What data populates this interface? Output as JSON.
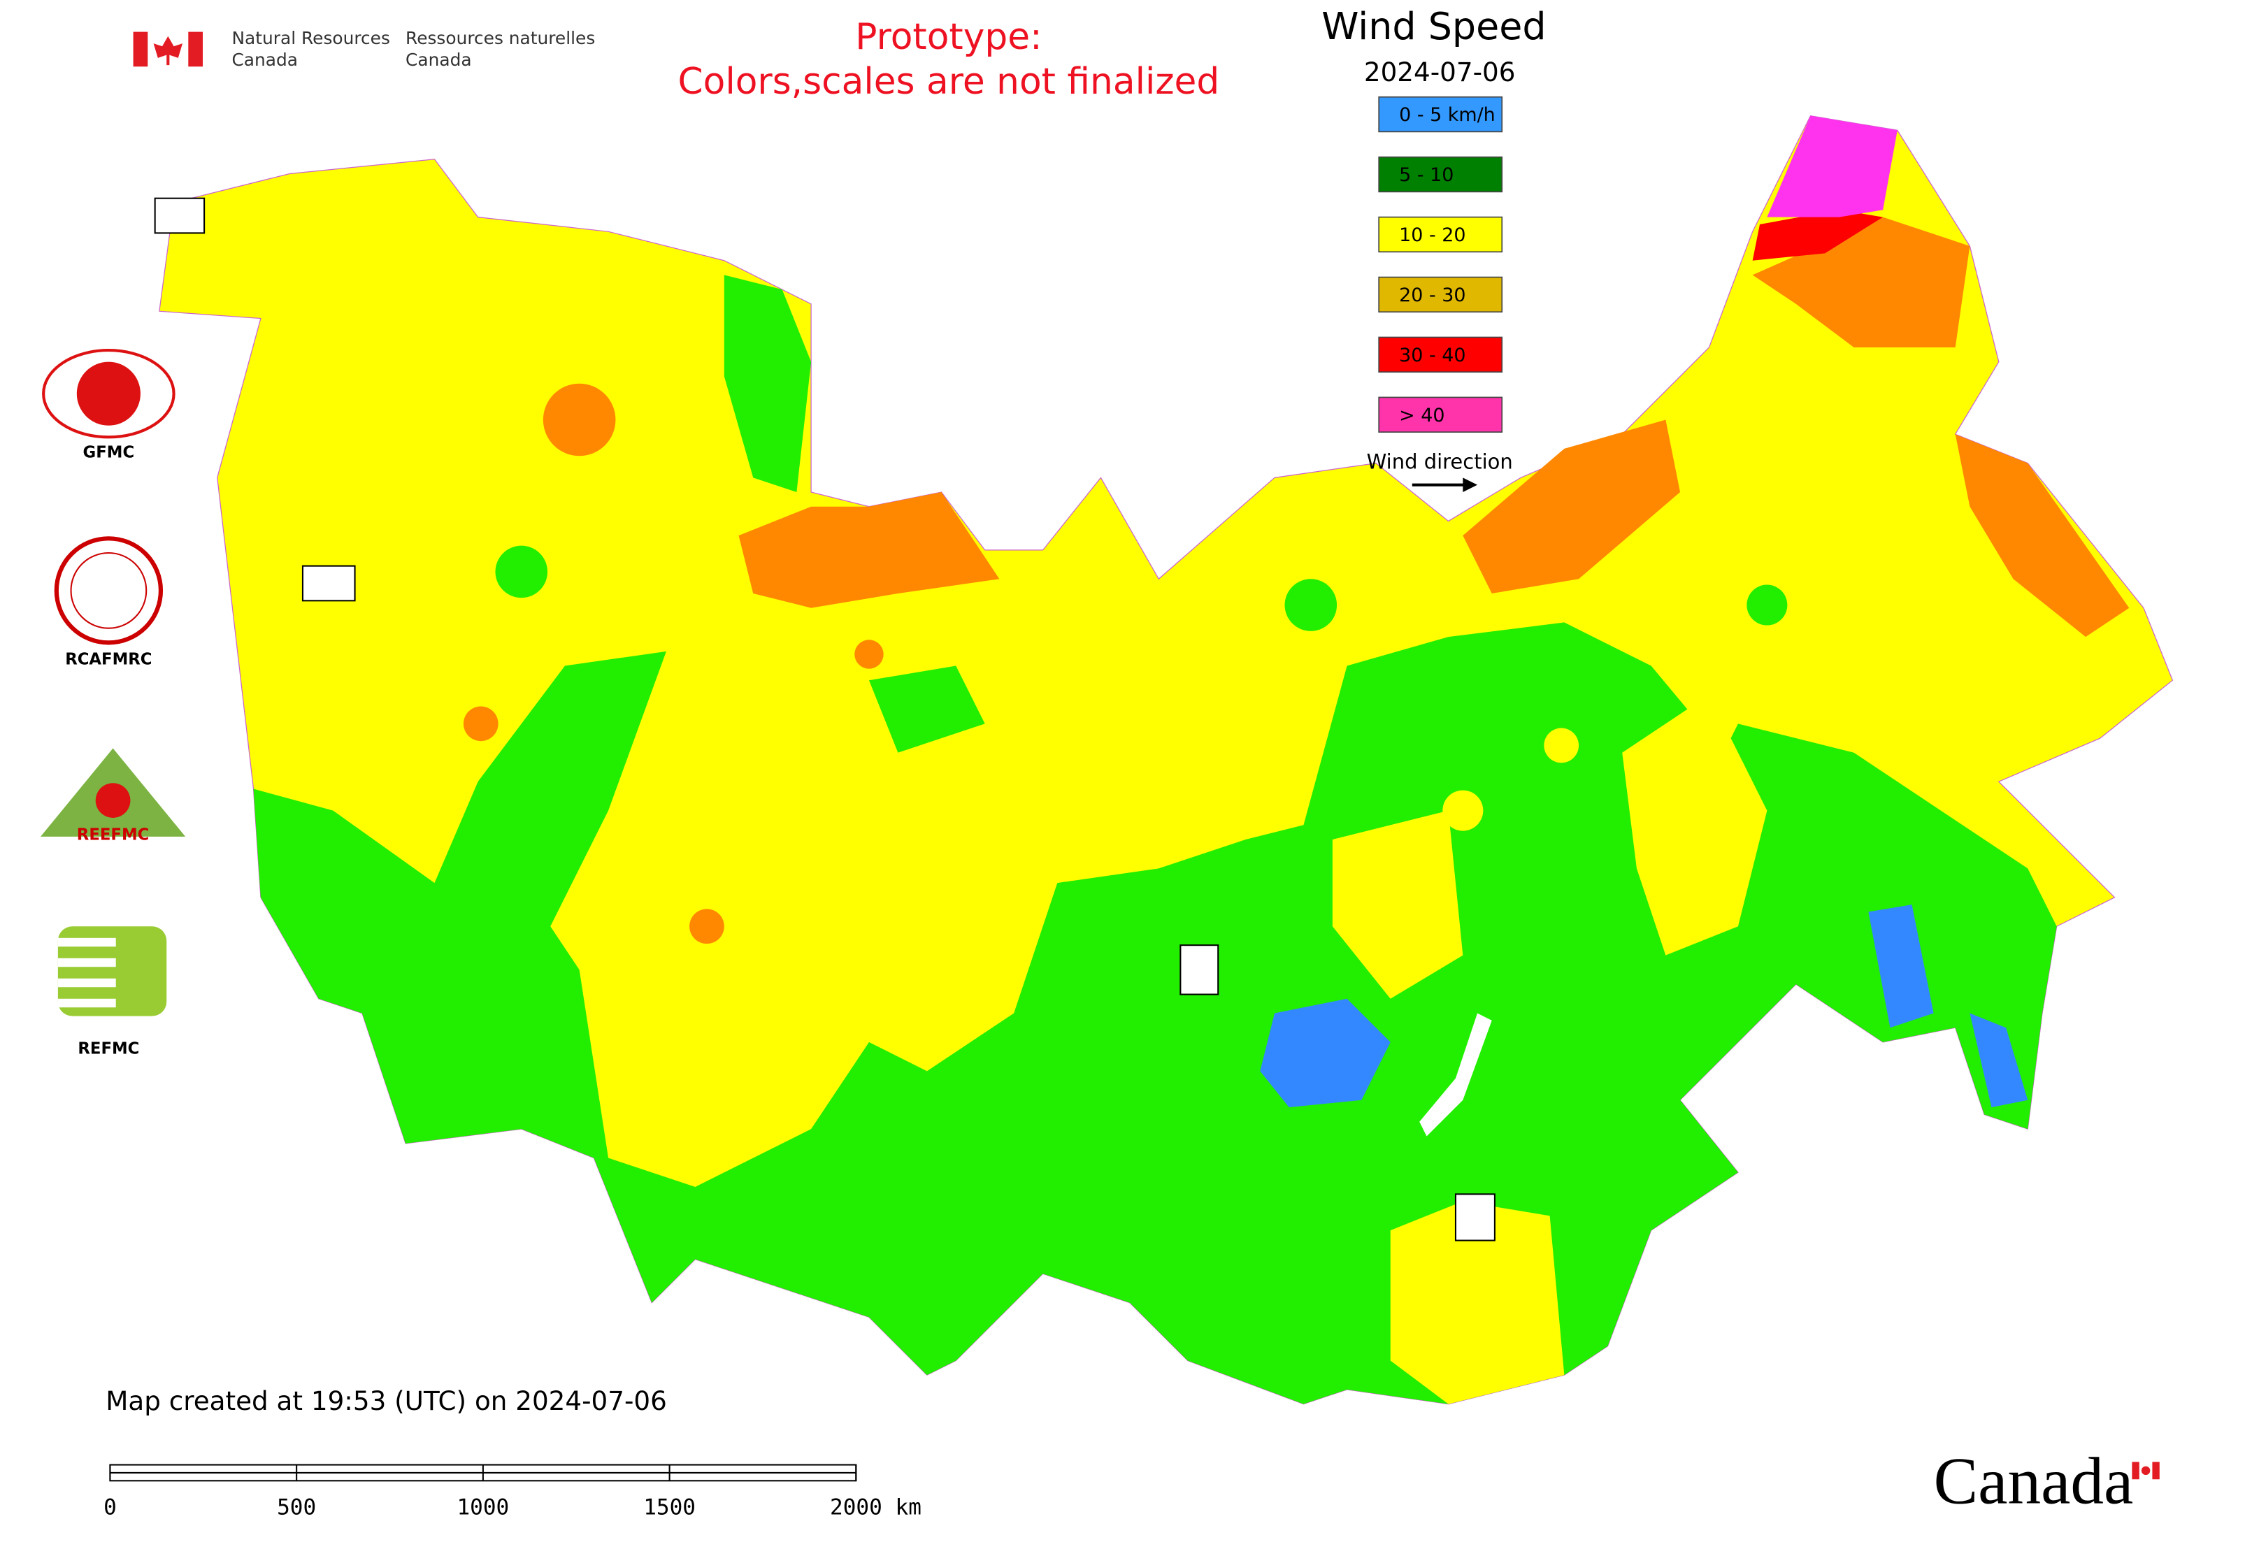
{
  "header": {
    "org_en": [
      "Natural Resources",
      "Canada"
    ],
    "org_fr": [
      "Ressources naturelles",
      "Canada"
    ]
  },
  "notice": [
    "Prototype:",
    "Colors,scales are not finalized"
  ],
  "title": "Wind Speed",
  "date": "2024-07-06",
  "legend": [
    {
      "label": "0 - 5 km/h",
      "color": "#3399ff"
    },
    {
      "label": "5 - 10",
      "color": "#008000"
    },
    {
      "label": "10 - 20",
      "color": "#ffff00"
    },
    {
      "label": "20 - 30",
      "color": "#e0b800"
    },
    {
      "label": "30 - 40",
      "color": "#ff0000"
    },
    {
      "label": "> 40",
      "color": "#ff33aa"
    }
  ],
  "wind_direction": "Wind direction",
  "logos": [
    "GFMC",
    "RCAFMRC",
    "REEFMC",
    "REFMC"
  ],
  "footer": "Map created at 19:53 (UTC) on 2024-07-06",
  "scale_bar": {
    "ticks": [
      0,
      500,
      1000,
      1500,
      {
        "value": 2000,
        "label": "2000 km"
      }
    ]
  },
  "wordmark": "Canada"
}
